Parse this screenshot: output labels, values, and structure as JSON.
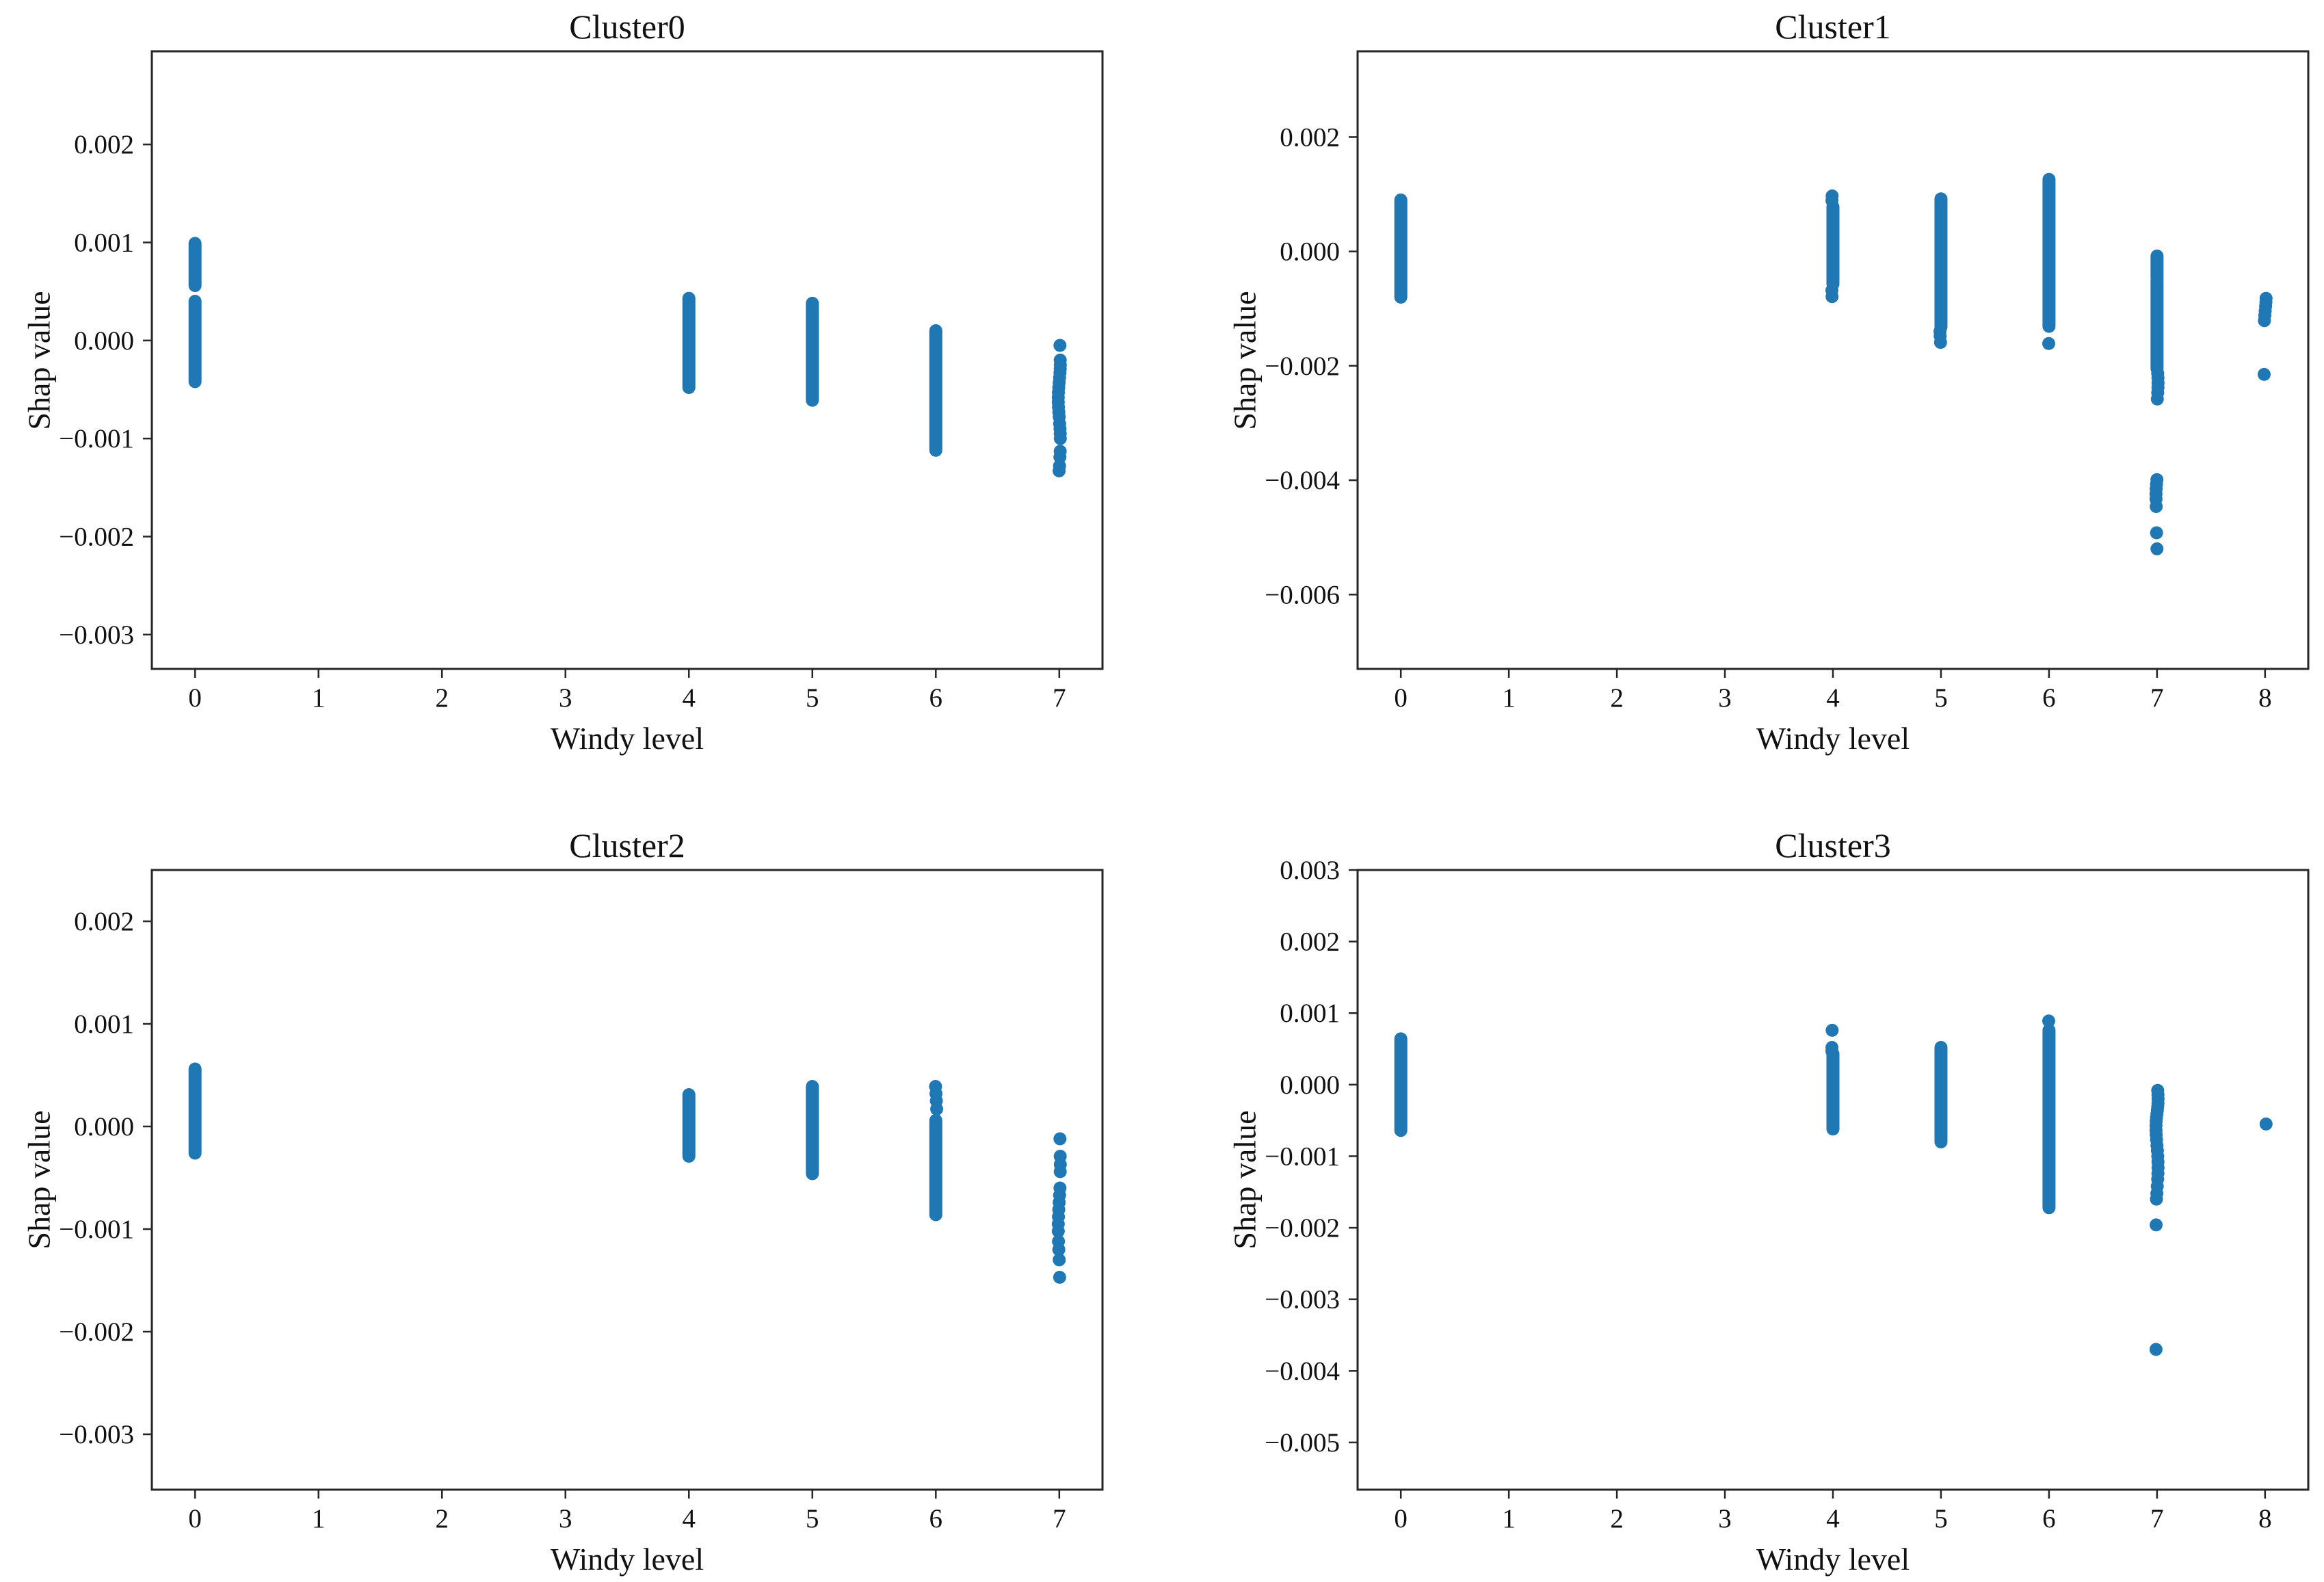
{
  "figure": {
    "background": "#ffffff",
    "rows": 2,
    "cols": 2
  },
  "style": {
    "marker_color": "#1f77b4",
    "spine_color": "#262626",
    "text_color": "#111111"
  },
  "chart_data": [
    {
      "type": "scatter",
      "title": "Cluster0",
      "xlabel": "Windy level",
      "ylabel": "Shap value",
      "grid": false,
      "legend": null,
      "marker_color": "#1f77b4",
      "xlim": [
        -0.35,
        7.35
      ],
      "ylim": [
        -0.00335,
        0.00295
      ],
      "xticks": [
        0,
        1,
        2,
        3,
        4,
        5,
        6,
        7
      ],
      "xtick_labels": [
        "0",
        "1",
        "2",
        "3",
        "4",
        "5",
        "6",
        "7"
      ],
      "yticks": [
        0.002,
        0.001,
        0.0,
        -0.001,
        -0.002,
        -0.003
      ],
      "ytick_labels": [
        "0.002",
        "0.001",
        "0.000",
        "−0.001",
        "−0.002",
        "−0.003"
      ],
      "columns": [
        {
          "x": 0,
          "strips": [
            [
              0.00056,
              0.00099
            ],
            [
              -0.00042,
              0.0004
            ]
          ],
          "dots": []
        },
        {
          "x": 4,
          "strips": [
            [
              -0.00048,
              0.00043
            ]
          ],
          "dots": []
        },
        {
          "x": 5,
          "strips": [
            [
              -0.00061,
              0.00038
            ]
          ],
          "dots": []
        },
        {
          "x": 6,
          "strips": [
            [
              -0.00112,
              0.0001
            ]
          ],
          "dots": []
        },
        {
          "x": 7,
          "strips": [],
          "dots": [
            -5e-05,
            -0.0002,
            -0.00025,
            -0.00029,
            -0.00033,
            -0.00038,
            -0.00043,
            -0.00048,
            -0.00053,
            -0.00058,
            -0.00063,
            -0.00068,
            -0.00073,
            -0.00078,
            -0.00085,
            -0.0009,
            -0.00095,
            -0.001,
            -0.00113,
            -0.00119,
            -0.00128,
            -0.00133
          ]
        }
      ]
    },
    {
      "type": "scatter",
      "title": "Cluster1",
      "xlabel": "Windy level",
      "ylabel": "Shap value",
      "grid": false,
      "legend": null,
      "marker_color": "#1f77b4",
      "xlim": [
        -0.4,
        8.4
      ],
      "ylim": [
        -0.0073,
        0.0035
      ],
      "xticks": [
        0,
        1,
        2,
        3,
        4,
        5,
        6,
        7,
        8
      ],
      "xtick_labels": [
        "0",
        "1",
        "2",
        "3",
        "4",
        "5",
        "6",
        "7",
        "8"
      ],
      "yticks": [
        0.002,
        0.0,
        -0.002,
        -0.004,
        -0.006
      ],
      "ytick_labels": [
        "0.002",
        "0.000",
        "−0.002",
        "−0.004",
        "−0.006"
      ],
      "columns": [
        {
          "x": 0,
          "strips": [
            [
              -0.0008,
              0.0009
            ]
          ],
          "dots": []
        },
        {
          "x": 4,
          "strips": [
            [
              -0.00057,
              0.00078
            ]
          ],
          "dots": [
            0.00097,
            0.00089,
            -0.00068,
            -0.00079
          ]
        },
        {
          "x": 5,
          "strips": [
            [
              -0.00132,
              0.00092
            ]
          ],
          "dots": [
            -0.0014,
            -0.00148,
            -0.00159
          ]
        },
        {
          "x": 6,
          "strips": [
            [
              -0.00131,
              0.00126
            ]
          ],
          "dots": [
            -0.00161
          ]
        },
        {
          "x": 7,
          "strips": [
            [
              -0.00046,
              -8e-05
            ],
            [
              -0.00205,
              -0.0005
            ]
          ],
          "dots": [
            -0.00213,
            -0.00221,
            -0.0023,
            -0.00238,
            -0.00247,
            -0.00258,
            -0.00399,
            -0.00407,
            -0.00415,
            -0.00424,
            -0.00433,
            -0.00446,
            -0.00492,
            -0.0052
          ]
        },
        {
          "x": 8,
          "strips": [],
          "dots": [
            -0.00082,
            -0.00089,
            -0.00096,
            -0.00104,
            -0.00112,
            -0.00121,
            -0.00215
          ]
        }
      ]
    },
    {
      "type": "scatter",
      "title": "Cluster2",
      "xlabel": "Windy level",
      "ylabel": "Shap value",
      "grid": false,
      "legend": null,
      "marker_color": "#1f77b4",
      "xlim": [
        -0.35,
        7.35
      ],
      "ylim": [
        -0.00354,
        0.0025
      ],
      "xticks": [
        0,
        1,
        2,
        3,
        4,
        5,
        6,
        7
      ],
      "xtick_labels": [
        "0",
        "1",
        "2",
        "3",
        "4",
        "5",
        "6",
        "7"
      ],
      "yticks": [
        0.002,
        0.001,
        0.0,
        -0.001,
        -0.002,
        -0.003
      ],
      "ytick_labels": [
        "0.002",
        "0.001",
        "0.000",
        "−0.001",
        "−0.002",
        "−0.003"
      ],
      "columns": [
        {
          "x": 0,
          "strips": [
            [
              -0.00026,
              0.00056
            ]
          ],
          "dots": []
        },
        {
          "x": 4,
          "strips": [
            [
              -0.00029,
              0.00031
            ]
          ],
          "dots": []
        },
        {
          "x": 5,
          "strips": [
            [
              -0.00046,
              0.00039
            ]
          ],
          "dots": []
        },
        {
          "x": 6,
          "strips": [
            [
              -0.00086,
              6e-05
            ]
          ],
          "dots": [
            0.00039,
            0.00032,
            0.00025,
            0.00017
          ]
        },
        {
          "x": 7,
          "strips": [],
          "dots": [
            -0.00012,
            -0.00029,
            -0.00037,
            -0.00044,
            -0.0006,
            -0.00067,
            -0.00074,
            -0.00081,
            -0.00088,
            -0.00095,
            -0.00102,
            -0.00112,
            -0.0012,
            -0.0013,
            -0.00147
          ]
        }
      ]
    },
    {
      "type": "scatter",
      "title": "Cluster3",
      "xlabel": "Windy level",
      "ylabel": "Shap value",
      "grid": false,
      "legend": null,
      "marker_color": "#1f77b4",
      "xlim": [
        -0.4,
        8.4
      ],
      "ylim": [
        -0.00566,
        0.003
      ],
      "xticks": [
        0,
        1,
        2,
        3,
        4,
        5,
        6,
        7,
        8
      ],
      "xtick_labels": [
        "0",
        "1",
        "2",
        "3",
        "4",
        "5",
        "6",
        "7",
        "8"
      ],
      "yticks": [
        0.003,
        0.002,
        0.001,
        0.0,
        -0.001,
        -0.002,
        -0.003,
        -0.004,
        -0.005
      ],
      "ytick_labels": [
        "0.003",
        "0.002",
        "0.001",
        "0.000",
        "−0.001",
        "−0.002",
        "−0.003",
        "−0.004",
        "−0.005"
      ],
      "columns": [
        {
          "x": 0,
          "strips": [
            [
              -0.00064,
              0.00064
            ]
          ],
          "dots": []
        },
        {
          "x": 4,
          "strips": [
            [
              -0.00062,
              0.00043
            ]
          ],
          "dots": [
            0.00076,
            0.00052,
            0.00047
          ]
        },
        {
          "x": 5,
          "strips": [
            [
              -0.0008,
              0.00052
            ]
          ],
          "dots": []
        },
        {
          "x": 6,
          "strips": [
            [
              -0.00172,
              0.00076
            ]
          ],
          "dots": [
            0.00089
          ]
        },
        {
          "x": 7,
          "strips": [],
          "dots": [
            -8e-05,
            -0.00014,
            -0.0002,
            -0.00026,
            -0.00031,
            -0.00036,
            -0.00041,
            -0.00046,
            -0.00051,
            -0.00057,
            -0.00064,
            -0.0007,
            -0.00077,
            -0.00085,
            -0.00092,
            -0.001,
            -0.00108,
            -0.00116,
            -0.00124,
            -0.00132,
            -0.00142,
            -0.00152,
            -0.0016,
            -0.00196,
            -0.0037
          ]
        },
        {
          "x": 8,
          "strips": [],
          "dots": [
            -0.00055
          ]
        }
      ]
    }
  ]
}
